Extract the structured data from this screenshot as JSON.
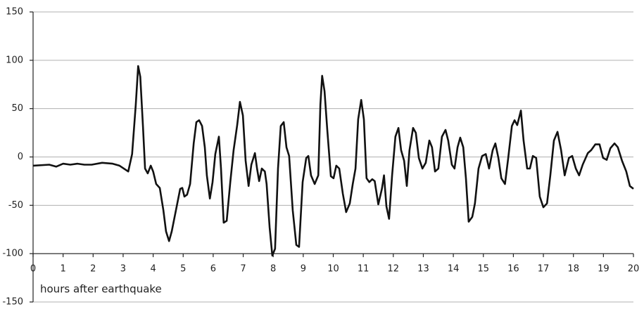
{
  "chart_data": {
    "type": "line",
    "x_label": "hours after earthquake",
    "x": [
      0,
      0.54,
      0.77,
      1.0,
      1.24,
      1.48,
      1.71,
      1.95,
      2.3,
      2.65,
      2.88,
      3.17,
      3.3,
      3.42,
      3.5,
      3.57,
      3.66,
      3.73,
      3.82,
      3.92,
      4.0,
      4.1,
      4.22,
      4.34,
      4.43,
      4.53,
      4.62,
      4.76,
      4.9,
      4.97,
      5.04,
      5.13,
      5.23,
      5.35,
      5.44,
      5.53,
      5.63,
      5.72,
      5.79,
      5.89,
      5.98,
      6.07,
      6.19,
      6.26,
      6.35,
      6.45,
      6.57,
      6.68,
      6.8,
      6.89,
      6.99,
      7.08,
      7.18,
      7.27,
      7.39,
      7.46,
      7.53,
      7.62,
      7.72,
      7.78,
      7.88,
      7.97,
      8.06,
      8.16,
      8.25,
      8.35,
      8.44,
      8.53,
      8.65,
      8.77,
      8.86,
      8.98,
      9.1,
      9.17,
      9.26,
      9.38,
      9.5,
      9.57,
      9.63,
      9.71,
      9.8,
      9.92,
      10.01,
      10.1,
      10.2,
      10.32,
      10.43,
      10.55,
      10.65,
      10.74,
      10.83,
      10.93,
      11.02,
      11.11,
      11.2,
      11.3,
      11.38,
      11.5,
      11.62,
      11.69,
      11.77,
      11.86,
      11.96,
      12.07,
      12.17,
      12.26,
      12.36,
      12.45,
      12.54,
      12.66,
      12.75,
      12.85,
      12.97,
      13.08,
      13.2,
      13.29,
      13.39,
      13.5,
      13.62,
      13.74,
      13.83,
      13.95,
      14.04,
      14.14,
      14.23,
      14.33,
      14.42,
      14.51,
      14.63,
      14.72,
      14.84,
      14.96,
      15.08,
      15.19,
      15.31,
      15.4,
      15.5,
      15.6,
      15.72,
      15.83,
      15.95,
      16.04,
      16.13,
      16.25,
      16.34,
      16.46,
      16.55,
      16.65,
      16.76,
      16.88,
      17.0,
      17.12,
      17.23,
      17.35,
      17.47,
      17.59,
      17.71,
      17.85,
      17.96,
      18.08,
      18.19,
      18.31,
      18.48,
      18.59,
      18.73,
      18.87,
      18.99,
      19.11,
      19.23,
      19.37,
      19.48,
      19.62,
      19.76,
      19.88,
      20
    ],
    "values": [
      -9,
      -8,
      -10,
      -7,
      -8,
      -7,
      -8,
      -8,
      -6,
      -7,
      -9,
      -15,
      3,
      54,
      94,
      83,
      32,
      -12,
      -17,
      -9,
      -15,
      -28,
      -32,
      -55,
      -77,
      -87,
      -77,
      -55,
      -33,
      -32,
      -41,
      -39,
      -28,
      14,
      36,
      38,
      32,
      10,
      -19,
      -43,
      -26,
      3,
      21,
      -12,
      -68,
      -66,
      -26,
      7,
      33,
      57,
      43,
      -4,
      -30,
      -8,
      4,
      -12,
      -25,
      -12,
      -15,
      -28,
      -73,
      -102,
      -95,
      -12,
      32,
      36,
      10,
      1,
      -55,
      -91,
      -93,
      -26,
      -1,
      1,
      -19,
      -28,
      -19,
      54,
      84,
      68,
      28,
      -20,
      -22,
      -9,
      -12,
      -38,
      -57,
      -48,
      -28,
      -12,
      39,
      59,
      39,
      -22,
      -26,
      -23,
      -25,
      -49,
      -33,
      -19,
      -51,
      -64,
      -19,
      21,
      30,
      7,
      -4,
      -30,
      7,
      30,
      25,
      -1,
      -12,
      -6,
      17,
      10,
      -15,
      -12,
      21,
      28,
      17,
      -8,
      -12,
      10,
      20,
      10,
      -22,
      -67,
      -62,
      -48,
      -12,
      1,
      3,
      -12,
      7,
      14,
      -1,
      -22,
      -28,
      -1,
      32,
      38,
      33,
      48,
      17,
      -12,
      -12,
      1,
      -1,
      -41,
      -52,
      -48,
      -19,
      17,
      26,
      7,
      -19,
      -1,
      1,
      -12,
      -19,
      -8,
      4,
      7,
      13,
      13,
      -1,
      -3,
      9,
      14,
      10,
      -4,
      -15,
      -30,
      -33
    ],
    "color": "#111111",
    "xlim": [
      0,
      20
    ],
    "xticks": [
      0,
      1,
      2,
      3,
      4,
      5,
      6,
      7,
      8,
      9,
      10,
      11,
      12,
      13,
      14,
      15,
      16,
      17,
      18,
      19,
      20
    ],
    "ylim": [
      -150,
      150
    ],
    "yticks": [
      -150,
      -100,
      -50,
      0,
      50,
      100,
      150
    ],
    "x_axis_crossing": -100,
    "grid": true
  }
}
